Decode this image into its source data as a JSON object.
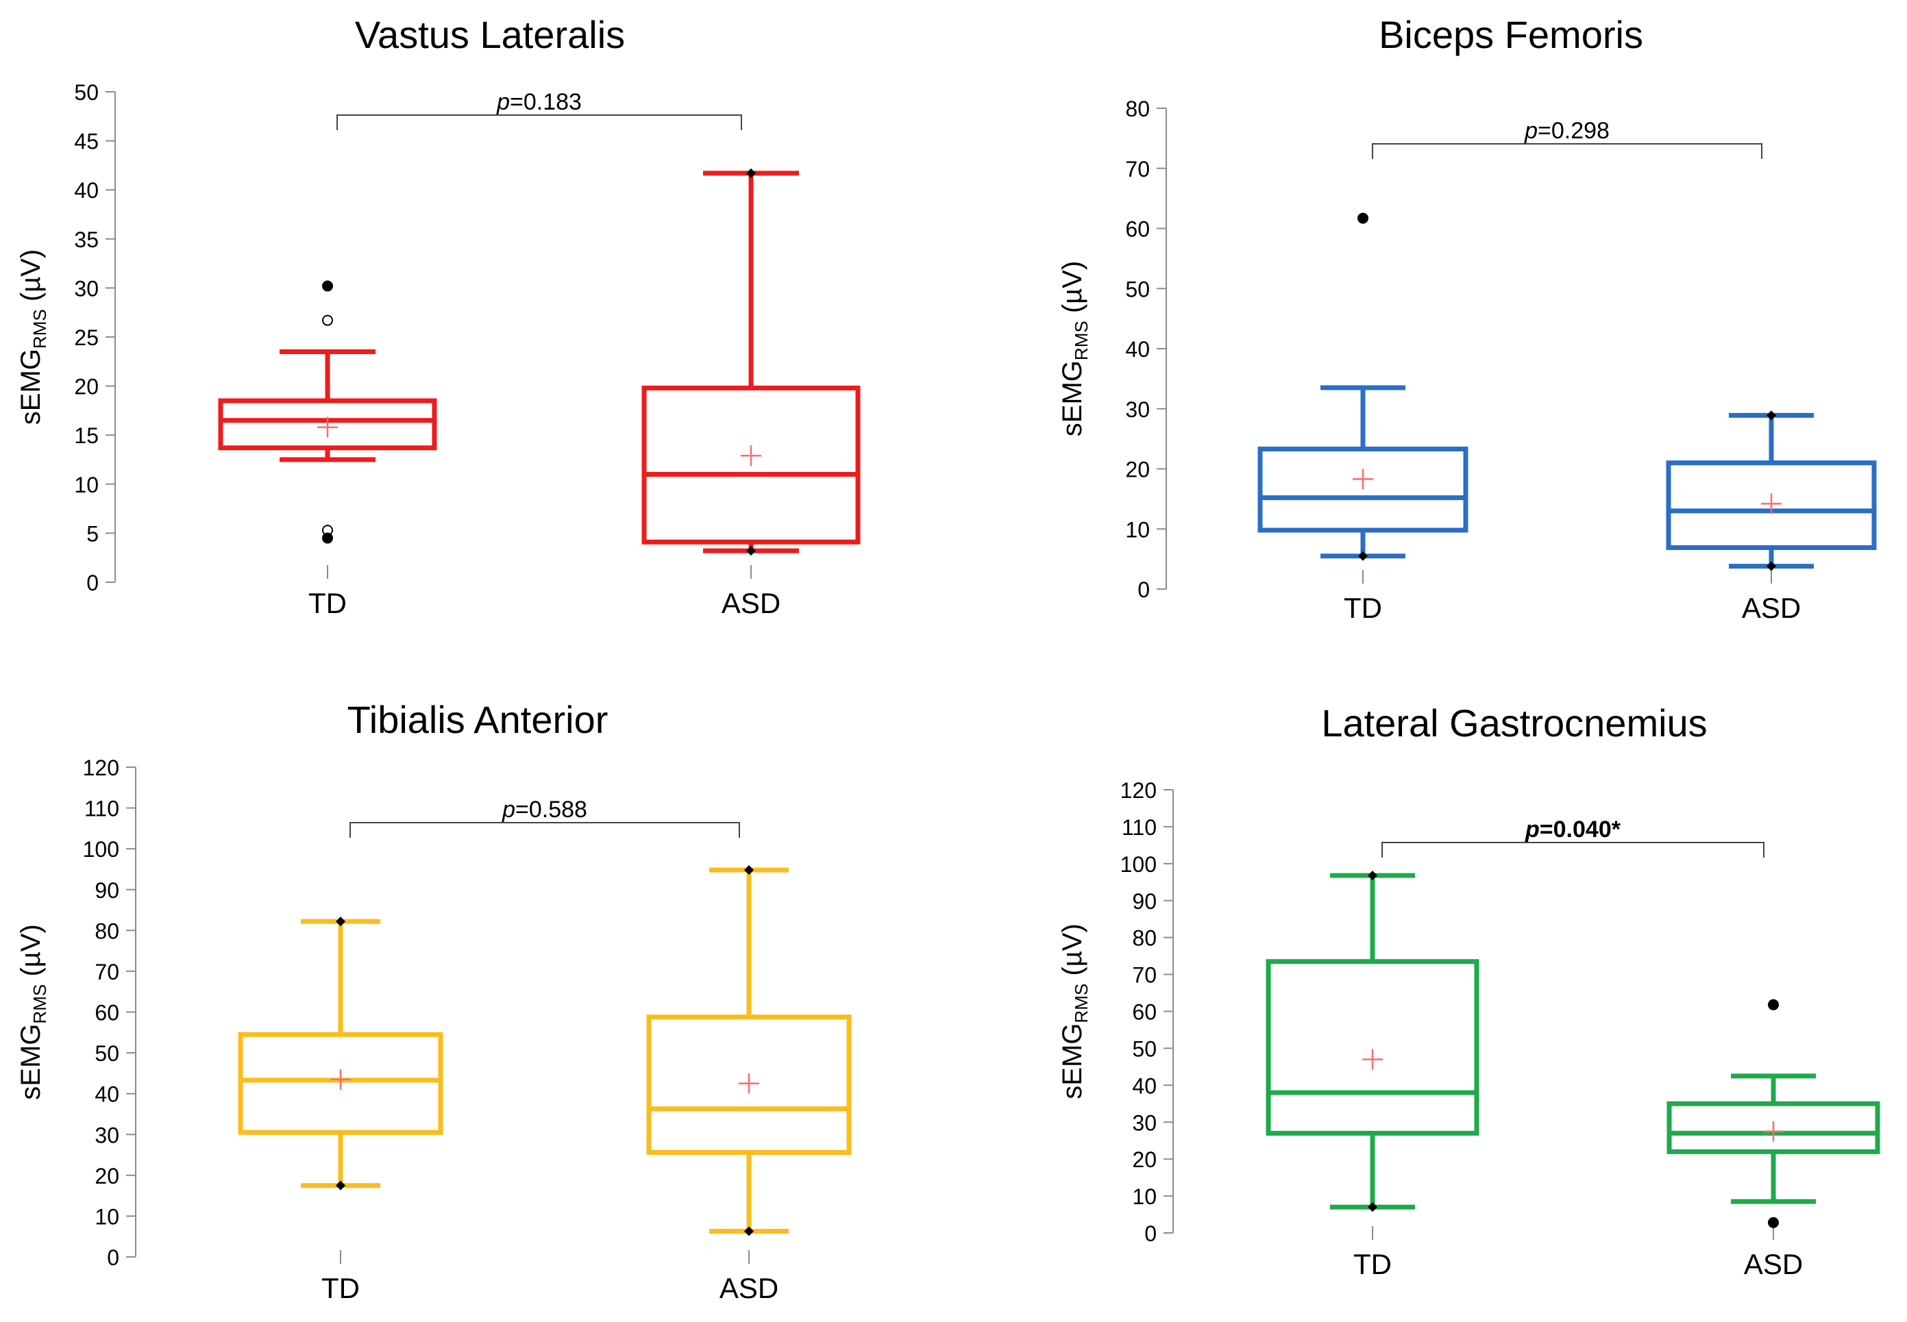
{
  "figure": {
    "y_axis_label_main": "sEMG",
    "y_axis_label_sub": "RMS",
    "y_axis_label_unit": " (µV)",
    "mean_marker_color": "#ff6b6b",
    "outlier_color": "#000000",
    "axis_color": "#8c8c8c"
  },
  "chart_data": [
    {
      "type": "boxplot",
      "title": "Vastus Lateralis",
      "ylabel": "sEMGRMS (µV)",
      "ylim": [
        0,
        50
      ],
      "ytick_step": 5,
      "color": "#ee1c1c",
      "categories": [
        "TD",
        "ASD"
      ],
      "p_label": {
        "prefix": "p",
        "value": "=0.183",
        "bold": false
      },
      "groups": [
        {
          "name": "TD",
          "whisker_low": 12.5,
          "q1": 13.7,
          "median": 16.5,
          "q3": 18.5,
          "whisker_high": 23.5,
          "mean": 15.8,
          "outliers": [
            {
              "y": 30.2,
              "filled": true
            },
            {
              "y": 26.7,
              "filled": false
            },
            {
              "y": 5.3,
              "filled": false
            },
            {
              "y": 4.5,
              "filled": true
            }
          ],
          "whisker_low_dot": false,
          "whisker_high_dot": false
        },
        {
          "name": "ASD",
          "whisker_low": 3.2,
          "q1": 4.1,
          "median": 11.0,
          "q3": 19.8,
          "whisker_high": 41.7,
          "mean": 12.9,
          "outliers": [],
          "whisker_low_dot": true,
          "whisker_high_dot": true
        }
      ]
    },
    {
      "type": "boxplot",
      "title": "Biceps Femoris",
      "ylabel": "sEMGRMS (µV)",
      "ylim": [
        0,
        80
      ],
      "ytick_step": 10,
      "color": "#2a6ec6",
      "categories": [
        "TD",
        "ASD"
      ],
      "p_label": {
        "prefix": "p",
        "value": "=0.298",
        "bold": false
      },
      "groups": [
        {
          "name": "TD",
          "whisker_low": 5.5,
          "q1": 9.8,
          "median": 15.2,
          "q3": 23.3,
          "whisker_high": 33.5,
          "mean": 18.3,
          "outliers": [
            {
              "y": 61.7,
              "filled": true
            }
          ],
          "whisker_low_dot": true,
          "whisker_high_dot": false
        },
        {
          "name": "ASD",
          "whisker_low": 3.8,
          "q1": 6.9,
          "median": 13.0,
          "q3": 21.0,
          "whisker_high": 28.9,
          "mean": 14.2,
          "outliers": [],
          "whisker_low_dot": true,
          "whisker_high_dot": true
        }
      ]
    },
    {
      "type": "boxplot",
      "title": "Tibialis Anterior",
      "ylabel": "sEMGRMS (µV)",
      "ylim": [
        0,
        120
      ],
      "ytick_step": 10,
      "color": "#fbbc1c",
      "categories": [
        "TD",
        "ASD"
      ],
      "p_label": {
        "prefix": "p",
        "value": "=0.588",
        "bold": false
      },
      "groups": [
        {
          "name": "TD",
          "whisker_low": 17.5,
          "q1": 30.5,
          "median": 43.3,
          "q3": 54.5,
          "whisker_high": 82.2,
          "mean": 43.5,
          "outliers": [],
          "whisker_low_dot": true,
          "whisker_high_dot": true
        },
        {
          "name": "ASD",
          "whisker_low": 6.3,
          "q1": 25.6,
          "median": 36.3,
          "q3": 58.8,
          "whisker_high": 94.8,
          "mean": 42.5,
          "outliers": [],
          "whisker_low_dot": true,
          "whisker_high_dot": true
        }
      ]
    },
    {
      "type": "boxplot",
      "title": "Lateral Gastrocnemius",
      "ylabel": "sEMGRMS (µV)",
      "ylim": [
        0,
        120
      ],
      "ytick_step": 10,
      "color": "#1faa4a",
      "categories": [
        "TD",
        "ASD"
      ],
      "p_label": {
        "prefix": "p",
        "value": "=0.040*",
        "bold": true
      },
      "groups": [
        {
          "name": "TD",
          "whisker_low": 7.0,
          "q1": 27.0,
          "median": 38.0,
          "q3": 73.5,
          "whisker_high": 96.8,
          "mean": 47.0,
          "outliers": [],
          "whisker_low_dot": true,
          "whisker_high_dot": true
        },
        {
          "name": "ASD",
          "whisker_low": 8.5,
          "q1": 22.0,
          "median": 27.0,
          "q3": 35.0,
          "whisker_high": 42.5,
          "mean": 27.5,
          "outliers": [
            {
              "y": 61.8,
              "filled": true
            },
            {
              "y": 2.8,
              "filled": true
            }
          ],
          "whisker_low_dot": false,
          "whisker_high_dot": false
        }
      ]
    }
  ]
}
